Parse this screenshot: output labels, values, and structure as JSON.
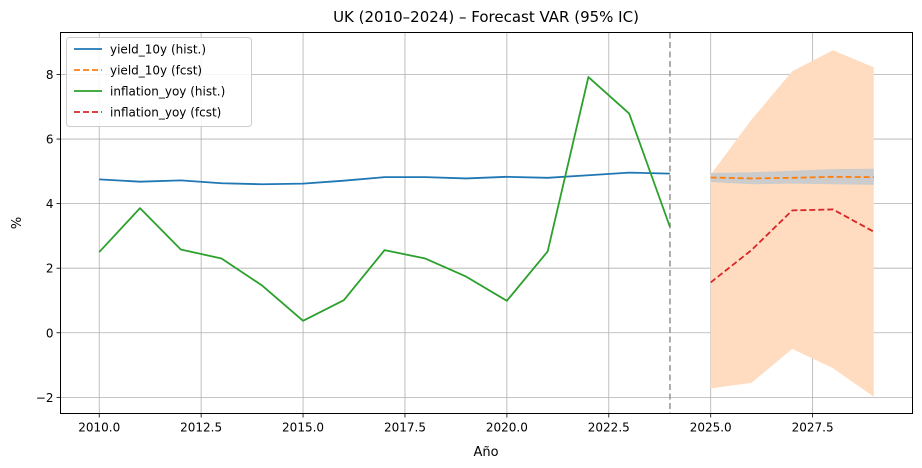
{
  "chart_data": {
    "type": "line",
    "title": "UK (2010–2024) – Forecast VAR (95% IC)",
    "xlabel": "Año",
    "ylabel": "%",
    "xlim": [
      2009.05,
      2029.95
    ],
    "ylim": [
      -2.5,
      9.3
    ],
    "x_ticks": [
      2010.0,
      2012.5,
      2015.0,
      2017.5,
      2020.0,
      2022.5,
      2025.0,
      2027.5
    ],
    "x_tick_labels": [
      "2010.0",
      "2012.5",
      "2015.0",
      "2017.5",
      "2020.0",
      "2022.5",
      "2025.0",
      "2027.5"
    ],
    "y_ticks": [
      -2,
      0,
      2,
      4,
      6,
      8
    ],
    "y_tick_labels": [
      "−2",
      "0",
      "2",
      "4",
      "6",
      "8"
    ],
    "grid": true,
    "legend_position": "top-left",
    "forecast_start_marker": 2024,
    "series": [
      {
        "name": "yield_10y (hist.)",
        "color": "#1f77b4",
        "style": "solid",
        "x": [
          2010,
          2011,
          2012,
          2013,
          2014,
          2015,
          2016,
          2017,
          2018,
          2019,
          2020,
          2021,
          2022,
          2023,
          2024
        ],
        "values": [
          4.75,
          4.68,
          4.72,
          4.63,
          4.6,
          4.62,
          4.71,
          4.82,
          4.82,
          4.78,
          4.83,
          4.8,
          4.88,
          4.96,
          4.93
        ]
      },
      {
        "name": "yield_10y (fcst)",
        "color": "#ff7f0e",
        "style": "dashed",
        "x": [
          2025,
          2026,
          2027,
          2028,
          2029
        ],
        "values": [
          4.81,
          4.78,
          4.8,
          4.83,
          4.82
        ]
      },
      {
        "name": "inflation_yoy (hist.)",
        "color": "#2ca02c",
        "style": "solid",
        "x": [
          2010,
          2011,
          2012,
          2013,
          2014,
          2015,
          2016,
          2017,
          2018,
          2019,
          2020,
          2021,
          2022,
          2023,
          2024
        ],
        "values": [
          2.5,
          3.86,
          2.58,
          2.3,
          1.46,
          0.37,
          1.01,
          2.56,
          2.3,
          1.74,
          0.99,
          2.52,
          7.92,
          6.79,
          3.28
        ]
      },
      {
        "name": "inflation_yoy (fcst)",
        "color": "#d62728",
        "style": "dashed",
        "x": [
          2025,
          2026,
          2027,
          2028,
          2029
        ],
        "values": [
          1.56,
          2.56,
          3.79,
          3.82,
          3.13
        ]
      }
    ],
    "confidence_bands": [
      {
        "color": "#ffdcbf",
        "x": [
          2025,
          2026,
          2027,
          2028,
          2029
        ],
        "lower": [
          -1.72,
          -1.55,
          -0.5,
          -1.1,
          -1.98
        ],
        "upper": [
          4.9,
          6.6,
          8.1,
          8.75,
          8.22
        ]
      },
      {
        "color": "#cccccc",
        "x": [
          2025,
          2026,
          2027,
          2028,
          2029
        ],
        "lower": [
          4.67,
          4.6,
          4.62,
          4.6,
          4.58
        ],
        "upper": [
          4.95,
          4.97,
          5.02,
          5.07,
          5.08
        ]
      }
    ]
  }
}
